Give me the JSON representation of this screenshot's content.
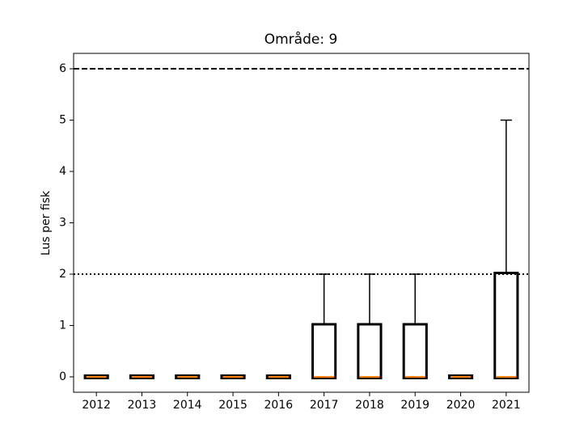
{
  "chart_data": {
    "type": "box",
    "title": "Område: 9",
    "y_label": "Lus per fisk",
    "categories": [
      "2012",
      "2013",
      "2014",
      "2015",
      "2016",
      "2017",
      "2018",
      "2019",
      "2020",
      "2021"
    ],
    "boxes": [
      {
        "min": 0,
        "q1": 0,
        "median": 0,
        "q3": 0,
        "max": 0
      },
      {
        "min": 0,
        "q1": 0,
        "median": 0,
        "q3": 0,
        "max": 0
      },
      {
        "min": 0,
        "q1": 0,
        "median": 0,
        "q3": 0,
        "max": 0
      },
      {
        "min": 0,
        "q1": 0,
        "median": 0,
        "q3": 0,
        "max": 0
      },
      {
        "min": 0,
        "q1": 0,
        "median": 0,
        "q3": 0,
        "max": 0
      },
      {
        "min": 0,
        "q1": 0,
        "median": 0,
        "q3": 1,
        "max": 2
      },
      {
        "min": 0,
        "q1": 0,
        "median": 0,
        "q3": 1,
        "max": 2
      },
      {
        "min": 0,
        "q1": 0,
        "median": 0,
        "q3": 1,
        "max": 2
      },
      {
        "min": 0,
        "q1": 0,
        "median": 0,
        "q3": 0,
        "max": 0
      },
      {
        "min": 0,
        "q1": 0,
        "median": 0,
        "q3": 2,
        "max": 5
      }
    ],
    "box_color": "#000000",
    "median_color": "#ff7f0e",
    "reference_lines": [
      {
        "value": 6,
        "style": "dashed"
      },
      {
        "value": 2,
        "style": "dotted"
      }
    ],
    "ylim": [
      -0.3,
      6.3
    ],
    "yticks": [
      0,
      1,
      2,
      3,
      4,
      5,
      6
    ]
  }
}
